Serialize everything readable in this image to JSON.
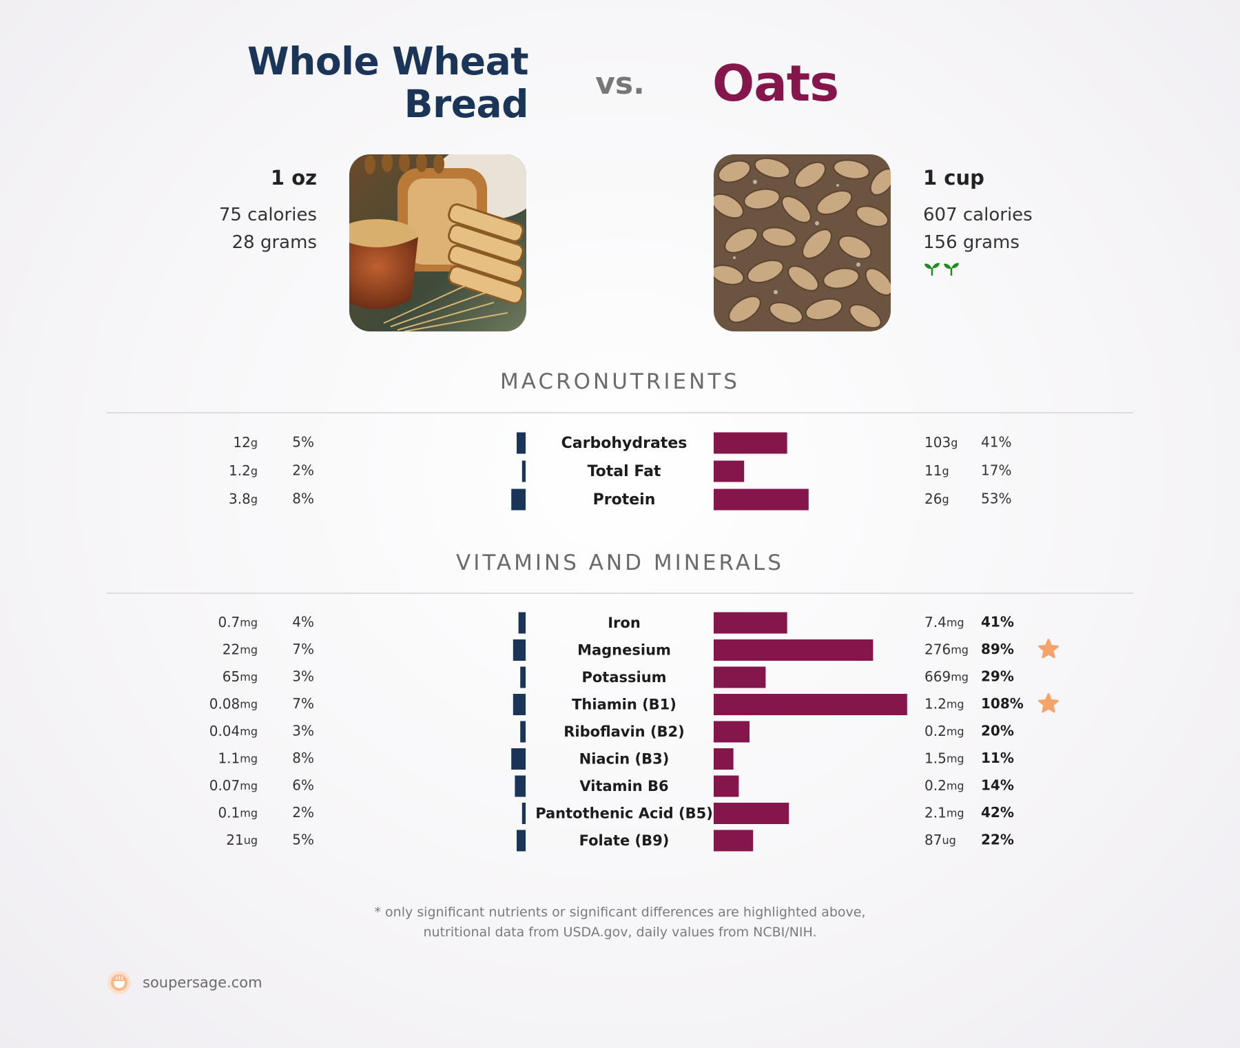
{
  "header": {
    "left_title_line1": "Whole Wheat",
    "left_title_line2": "Bread",
    "vs": "vs.",
    "right_title": "Oats"
  },
  "left_food": {
    "serving": "1 oz",
    "calories": "75 calories",
    "grams": "28 grams"
  },
  "right_food": {
    "serving": "1 cup",
    "calories": "607 calories",
    "grams": "156 grams",
    "badge_icons": [
      "sprout-icon",
      "sprout-icon"
    ]
  },
  "colors": {
    "left": "#1a3557",
    "right": "#85164b",
    "star": "#f4a46a",
    "sprout": "#1f8a1f"
  },
  "sections": {
    "macronutrients": "MACRONUTRIENTS",
    "vitamins": "VITAMINS AND MINERALS"
  },
  "chart_data": [
    {
      "type": "bar",
      "title": "MACRONUTRIENTS",
      "categories": [
        "Carbohydrates",
        "Total Fat",
        "Protein"
      ],
      "series": [
        {
          "name": "Whole Wheat Bread",
          "amounts": [
            "12",
            "1.2",
            "3.8"
          ],
          "units": [
            "g",
            "g",
            "g"
          ],
          "values": [
            5,
            2,
            8
          ],
          "labels": [
            "5%",
            "2%",
            "8%"
          ]
        },
        {
          "name": "Oats",
          "amounts": [
            "103",
            "11",
            "26"
          ],
          "units": [
            "g",
            "g",
            "g"
          ],
          "values": [
            41,
            17,
            53
          ],
          "labels": [
            "41%",
            "17%",
            "53%"
          ]
        }
      ],
      "highlight": [
        false,
        false,
        false
      ]
    },
    {
      "type": "bar",
      "title": "VITAMINS AND MINERALS",
      "categories": [
        "Iron",
        "Magnesium",
        "Potassium",
        "Thiamin (B1)",
        "Riboflavin (B2)",
        "Niacin (B3)",
        "Vitamin B6",
        "Pantothenic Acid (B5)",
        "Folate (B9)"
      ],
      "series": [
        {
          "name": "Whole Wheat Bread",
          "amounts": [
            "0.7",
            "22",
            "65",
            "0.08",
            "0.04",
            "1.1",
            "0.07",
            "0.1",
            "21"
          ],
          "units": [
            "mg",
            "mg",
            "mg",
            "mg",
            "mg",
            "mg",
            "mg",
            "mg",
            "ug"
          ],
          "values": [
            4,
            7,
            3,
            7,
            3,
            8,
            6,
            2,
            5
          ],
          "labels": [
            "4%",
            "7%",
            "3%",
            "7%",
            "3%",
            "8%",
            "6%",
            "2%",
            "5%"
          ]
        },
        {
          "name": "Oats",
          "amounts": [
            "7.4",
            "276",
            "669",
            "1.2",
            "0.2",
            "1.5",
            "0.2",
            "2.1",
            "87"
          ],
          "units": [
            "mg",
            "mg",
            "mg",
            "mg",
            "mg",
            "mg",
            "mg",
            "mg",
            "ug"
          ],
          "values": [
            41,
            89,
            29,
            108,
            20,
            11,
            14,
            42,
            22
          ],
          "labels": [
            "41%",
            "89%",
            "29%",
            "108%",
            "20%",
            "11%",
            "14%",
            "42%",
            "22%"
          ]
        }
      ],
      "highlight": [
        false,
        true,
        false,
        true,
        false,
        false,
        false,
        false,
        false
      ]
    }
  ],
  "footnote": {
    "line1": "* only significant nutrients or significant differences are highlighted above,",
    "line2": "nutritional data from USDA.gov, daily values from NCBI/NIH."
  },
  "brand": {
    "name": "soupersage.com",
    "icon": "soup-bowl-logo-icon"
  }
}
